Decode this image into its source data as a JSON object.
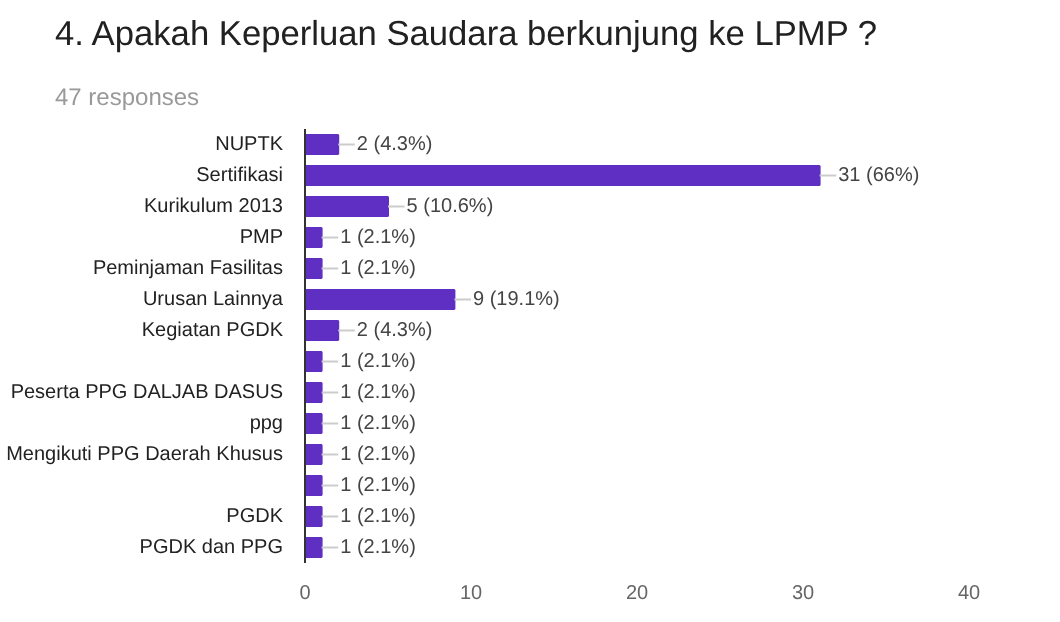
{
  "chart_data": {
    "type": "bar",
    "orientation": "horizontal",
    "title": "4. Apakah Keperluan Saudara berkunjung ke LPMP ?",
    "subtitle": "47 responses",
    "categories": [
      "NUPTK",
      "Sertifikasi",
      "Kurikulum 2013",
      "PMP",
      "Peminjaman Fasilitas",
      "Urusan Lainnya",
      "Kegiatan PGDK",
      null,
      "Peserta PPG DALJAB DASUS",
      "ppg",
      "Mengikuti PPG Daerah Khusus",
      null,
      "PGDK",
      "PGDK dan PPG"
    ],
    "values": [
      2,
      31,
      5,
      1,
      1,
      9,
      2,
      1,
      1,
      1,
      1,
      1,
      1,
      1
    ],
    "value_labels": [
      "2 (4.3%)",
      "31 (66%)",
      "5 (10.6%)",
      "1 (2.1%)",
      "1 (2.1%)",
      "9 (19.1%)",
      "2 (4.3%)",
      "1 (2.1%)",
      "1 (2.1%)",
      "1 (2.1%)",
      "1 (2.1%)",
      "1 (2.1%)",
      "1 (2.1%)",
      "1 (2.1%)"
    ],
    "color": "#5f2fc4",
    "xlim": [
      0,
      40
    ],
    "xticks": [
      0,
      10,
      20,
      30,
      40
    ],
    "grid": false
  }
}
